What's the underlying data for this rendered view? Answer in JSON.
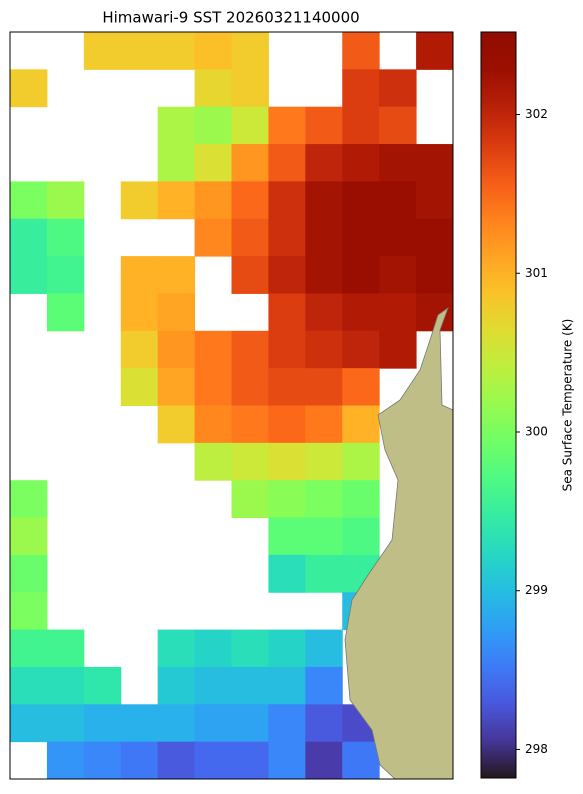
{
  "chart_data": {
    "type": "heatmap",
    "title": "Himawari-9 SST 20260321140000",
    "colorbar_label": "Sea Surface Temperature (K)",
    "colormap": "turbo",
    "clim": [
      297.82,
      302.52
    ],
    "cbar_ticks": [
      298,
      299,
      300,
      301,
      302
    ],
    "values": [
      [
        null,
        null,
        300.8,
        300.8,
        300.8,
        300.9,
        300.8,
        null,
        null,
        301.6,
        null,
        302.1
      ],
      [
        300.8,
        null,
        null,
        null,
        null,
        300.7,
        300.8,
        null,
        null,
        301.8,
        301.9,
        null
      ],
      [
        null,
        null,
        null,
        null,
        300.3,
        300.2,
        300.5,
        301.4,
        301.6,
        301.8,
        301.7,
        null
      ],
      [
        null,
        null,
        null,
        null,
        300.3,
        300.6,
        301.2,
        301.6,
        302.0,
        302.1,
        302.2,
        302.2
      ],
      [
        300.0,
        300.2,
        null,
        300.8,
        301.0,
        301.2,
        301.5,
        301.9,
        302.2,
        302.3,
        302.3,
        302.2
      ],
      [
        299.5,
        299.7,
        null,
        null,
        null,
        301.3,
        301.6,
        301.9,
        302.2,
        302.3,
        302.3,
        302.3
      ],
      [
        299.5,
        299.6,
        null,
        301.0,
        301.0,
        null,
        301.7,
        302.0,
        302.2,
        302.3,
        302.2,
        302.3
      ],
      [
        null,
        299.8,
        null,
        301.0,
        301.1,
        null,
        null,
        301.8,
        302.0,
        302.1,
        302.1,
        302.2
      ],
      [
        null,
        null,
        null,
        300.8,
        301.2,
        301.4,
        301.6,
        301.8,
        301.9,
        302.0,
        302.1,
        null
      ],
      [
        null,
        null,
        null,
        300.6,
        301.1,
        301.4,
        301.6,
        301.7,
        301.7,
        301.5,
        null,
        null
      ],
      [
        null,
        null,
        null,
        null,
        300.8,
        301.3,
        301.4,
        301.5,
        301.4,
        301.0,
        null,
        null
      ],
      [
        null,
        null,
        null,
        null,
        null,
        300.4,
        300.5,
        300.6,
        300.5,
        300.3,
        null,
        null
      ],
      [
        300.0,
        null,
        null,
        null,
        null,
        null,
        300.2,
        300.1,
        300.0,
        299.9,
        null,
        null
      ],
      [
        300.2,
        null,
        null,
        null,
        null,
        null,
        null,
        299.8,
        299.8,
        299.7,
        null,
        null
      ],
      [
        299.9,
        null,
        null,
        null,
        null,
        null,
        null,
        299.3,
        299.5,
        299.5,
        null,
        null
      ],
      [
        300.0,
        null,
        null,
        null,
        null,
        null,
        null,
        null,
        null,
        299.0,
        null,
        null
      ],
      [
        299.6,
        299.6,
        null,
        null,
        299.3,
        299.2,
        299.3,
        299.2,
        299.0,
        null,
        null,
        null
      ],
      [
        299.3,
        299.3,
        299.4,
        null,
        299.1,
        299.0,
        299.0,
        299.0,
        298.6,
        null,
        null,
        null
      ],
      [
        299.0,
        299.0,
        298.9,
        298.9,
        298.9,
        298.8,
        298.8,
        298.6,
        298.3,
        298.2,
        null,
        null
      ],
      [
        null,
        298.7,
        298.6,
        298.5,
        298.3,
        298.4,
        298.4,
        298.6,
        298.1,
        298.5,
        null,
        null
      ]
    ]
  }
}
